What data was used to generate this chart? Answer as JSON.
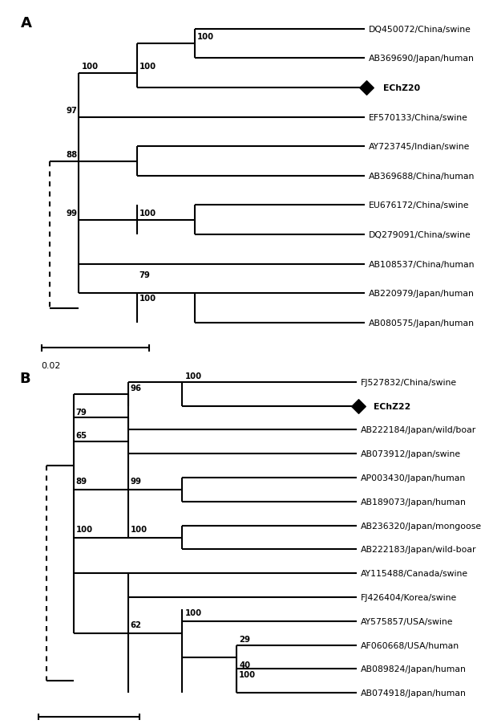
{
  "panel_A": {
    "label": "A",
    "taxa": [
      {
        "name": "DQ450072/China/swine",
        "y": 1.0,
        "bold": false,
        "diamond": false
      },
      {
        "name": "AB369690/Japan/human",
        "y": 2.0,
        "bold": false,
        "diamond": false
      },
      {
        "name": "EChZ20",
        "y": 3.0,
        "bold": true,
        "diamond": true
      },
      {
        "name": "EF570133/China/swine",
        "y": 4.0,
        "bold": false,
        "diamond": false
      },
      {
        "name": "AY723745/Indian/swine",
        "y": 5.0,
        "bold": false,
        "diamond": false
      },
      {
        "name": "AB369688/China/human",
        "y": 6.0,
        "bold": false,
        "diamond": false
      },
      {
        "name": "EU676172/China/swine",
        "y": 7.0,
        "bold": false,
        "diamond": false
      },
      {
        "name": "DQ279091/China/swine",
        "y": 8.0,
        "bold": false,
        "diamond": false
      },
      {
        "name": "AB108537/China/human",
        "y": 9.0,
        "bold": false,
        "diamond": false
      },
      {
        "name": "AB220979/Japan/human",
        "y": 10.0,
        "bold": false,
        "diamond": false
      },
      {
        "name": "AB080575/Japan/human",
        "y": 11.0,
        "bold": false,
        "diamond": false
      }
    ]
  },
  "panel_B": {
    "label": "B",
    "taxa": [
      {
        "name": "FJ527832/China/swine",
        "y": 1.0,
        "bold": false,
        "diamond": false
      },
      {
        "name": "EChZ22",
        "y": 2.0,
        "bold": true,
        "diamond": true
      },
      {
        "name": "AB222184/Japan/wild/boar",
        "y": 3.0,
        "bold": false,
        "diamond": false
      },
      {
        "name": "AB073912/Japan/swine",
        "y": 4.0,
        "bold": false,
        "diamond": false
      },
      {
        "name": "AP003430/Japan/human",
        "y": 5.0,
        "bold": false,
        "diamond": false
      },
      {
        "name": "AB189073/Japan/human",
        "y": 6.0,
        "bold": false,
        "diamond": false
      },
      {
        "name": "AB236320/Japan/mongoose",
        "y": 7.0,
        "bold": false,
        "diamond": false
      },
      {
        "name": "AB222183/Japan/wild-boar",
        "y": 8.0,
        "bold": false,
        "diamond": false
      },
      {
        "name": "AY115488/Canada/swine",
        "y": 9.0,
        "bold": false,
        "diamond": false
      },
      {
        "name": "FJ426404/Korea/swine",
        "y": 10.0,
        "bold": false,
        "diamond": false
      },
      {
        "name": "AY575857/USA/swine",
        "y": 11.0,
        "bold": false,
        "diamond": false
      },
      {
        "name": "AF060668/USA/human",
        "y": 12.0,
        "bold": false,
        "diamond": false
      },
      {
        "name": "AB089824/Japan/human",
        "y": 13.0,
        "bold": false,
        "diamond": false
      },
      {
        "name": "AB074918/Japan/human",
        "y": 14.0,
        "bold": false,
        "diamond": false
      }
    ]
  },
  "line_width": 1.5,
  "font_size": 7.8,
  "label_font_size": 13,
  "diamond_size": 80,
  "text_color": "#000000",
  "line_color": "#000000"
}
